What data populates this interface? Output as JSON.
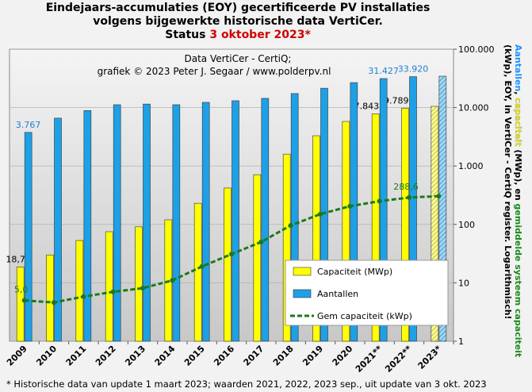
{
  "chart_data": {
    "type": "bar",
    "title": [
      "Eindejaars-accumulaties (EOY) gecertificeerde PV installaties",
      "volgens bijgewerkte historische data VertiCer.",
      "Status "
    ],
    "title_highlight": "3 oktober 2023*",
    "subtitle": [
      "Data VertiCer - CertiQ;",
      "grafiek © 2023 Peter J. Segaar / www.polderpv.nl"
    ],
    "footnote": "* Historische data van update 1 maart 2023; waarden 2021, 2022, 2023 sep., uit update van 3 okt. 2023",
    "y2_label": [
      [
        {
          "text": "Aantallen",
          "color": "#1e90ff"
        },
        {
          "text": ", ",
          "color": "#000000"
        },
        {
          "text": "capaciteit",
          "color": "#e6e600"
        },
        {
          "text": " (MWp), en ",
          "color": "#000000"
        },
        {
          "text": "gemiddelde systeem capaciteit",
          "color": "#1a8a1a"
        }
      ],
      [
        {
          "text": "(kWp), EOY, in VertiCer - CertiQ register. Logarithmisch!",
          "color": "#000000"
        }
      ]
    ],
    "categories": [
      "2009",
      "2010",
      "2011",
      "2012",
      "2013",
      "2014",
      "2015",
      "2016",
      "2017",
      "2018",
      "2019",
      "2020",
      "2021**",
      "2022**",
      "2023*"
    ],
    "series": [
      {
        "name": "Capaciteit (MWp)",
        "kind": "bar",
        "color": "#ffff00",
        "values": [
          18.7,
          30,
          53,
          75,
          91,
          120,
          230,
          420,
          710,
          1600,
          3300,
          5800,
          7843.5,
          9789.7,
          10500
        ],
        "value_labels": [
          "18,7",
          null,
          null,
          null,
          null,
          null,
          null,
          null,
          null,
          null,
          null,
          null,
          "7.843,5",
          "9.789,7",
          null
        ]
      },
      {
        "name": "Aantallen",
        "kind": "bar",
        "color": "#1ea0e6",
        "values": [
          3767,
          6600,
          8900,
          11200,
          11500,
          11200,
          12300,
          13100,
          14400,
          17400,
          21500,
          26800,
          31427,
          33920,
          34500
        ],
        "value_labels": [
          "3.767",
          null,
          null,
          null,
          null,
          null,
          null,
          null,
          null,
          null,
          null,
          null,
          "31.427",
          "33.920",
          null
        ]
      },
      {
        "name": "Gem capaciteit (kWp)",
        "kind": "line",
        "color": "#1a7a1a",
        "values": [
          5.0,
          4.6,
          5.8,
          7.0,
          8.1,
          11,
          19,
          31,
          50,
          96,
          150,
          205,
          250,
          288.6,
          305
        ],
        "value_labels": [
          "5,0",
          null,
          null,
          null,
          null,
          null,
          null,
          null,
          null,
          null,
          null,
          null,
          null,
          "288,6",
          null
        ]
      }
    ],
    "log_scale": true,
    "ylim": [
      1,
      100000
    ],
    "yticks": [
      1,
      10,
      100,
      {
        "value": 1000,
        "label": "1.000"
      },
      {
        "value": 10000,
        "label": "10.000"
      },
      {
        "value": 100000,
        "label": "100.000"
      }
    ],
    "grid": true,
    "legend": "lower right"
  }
}
